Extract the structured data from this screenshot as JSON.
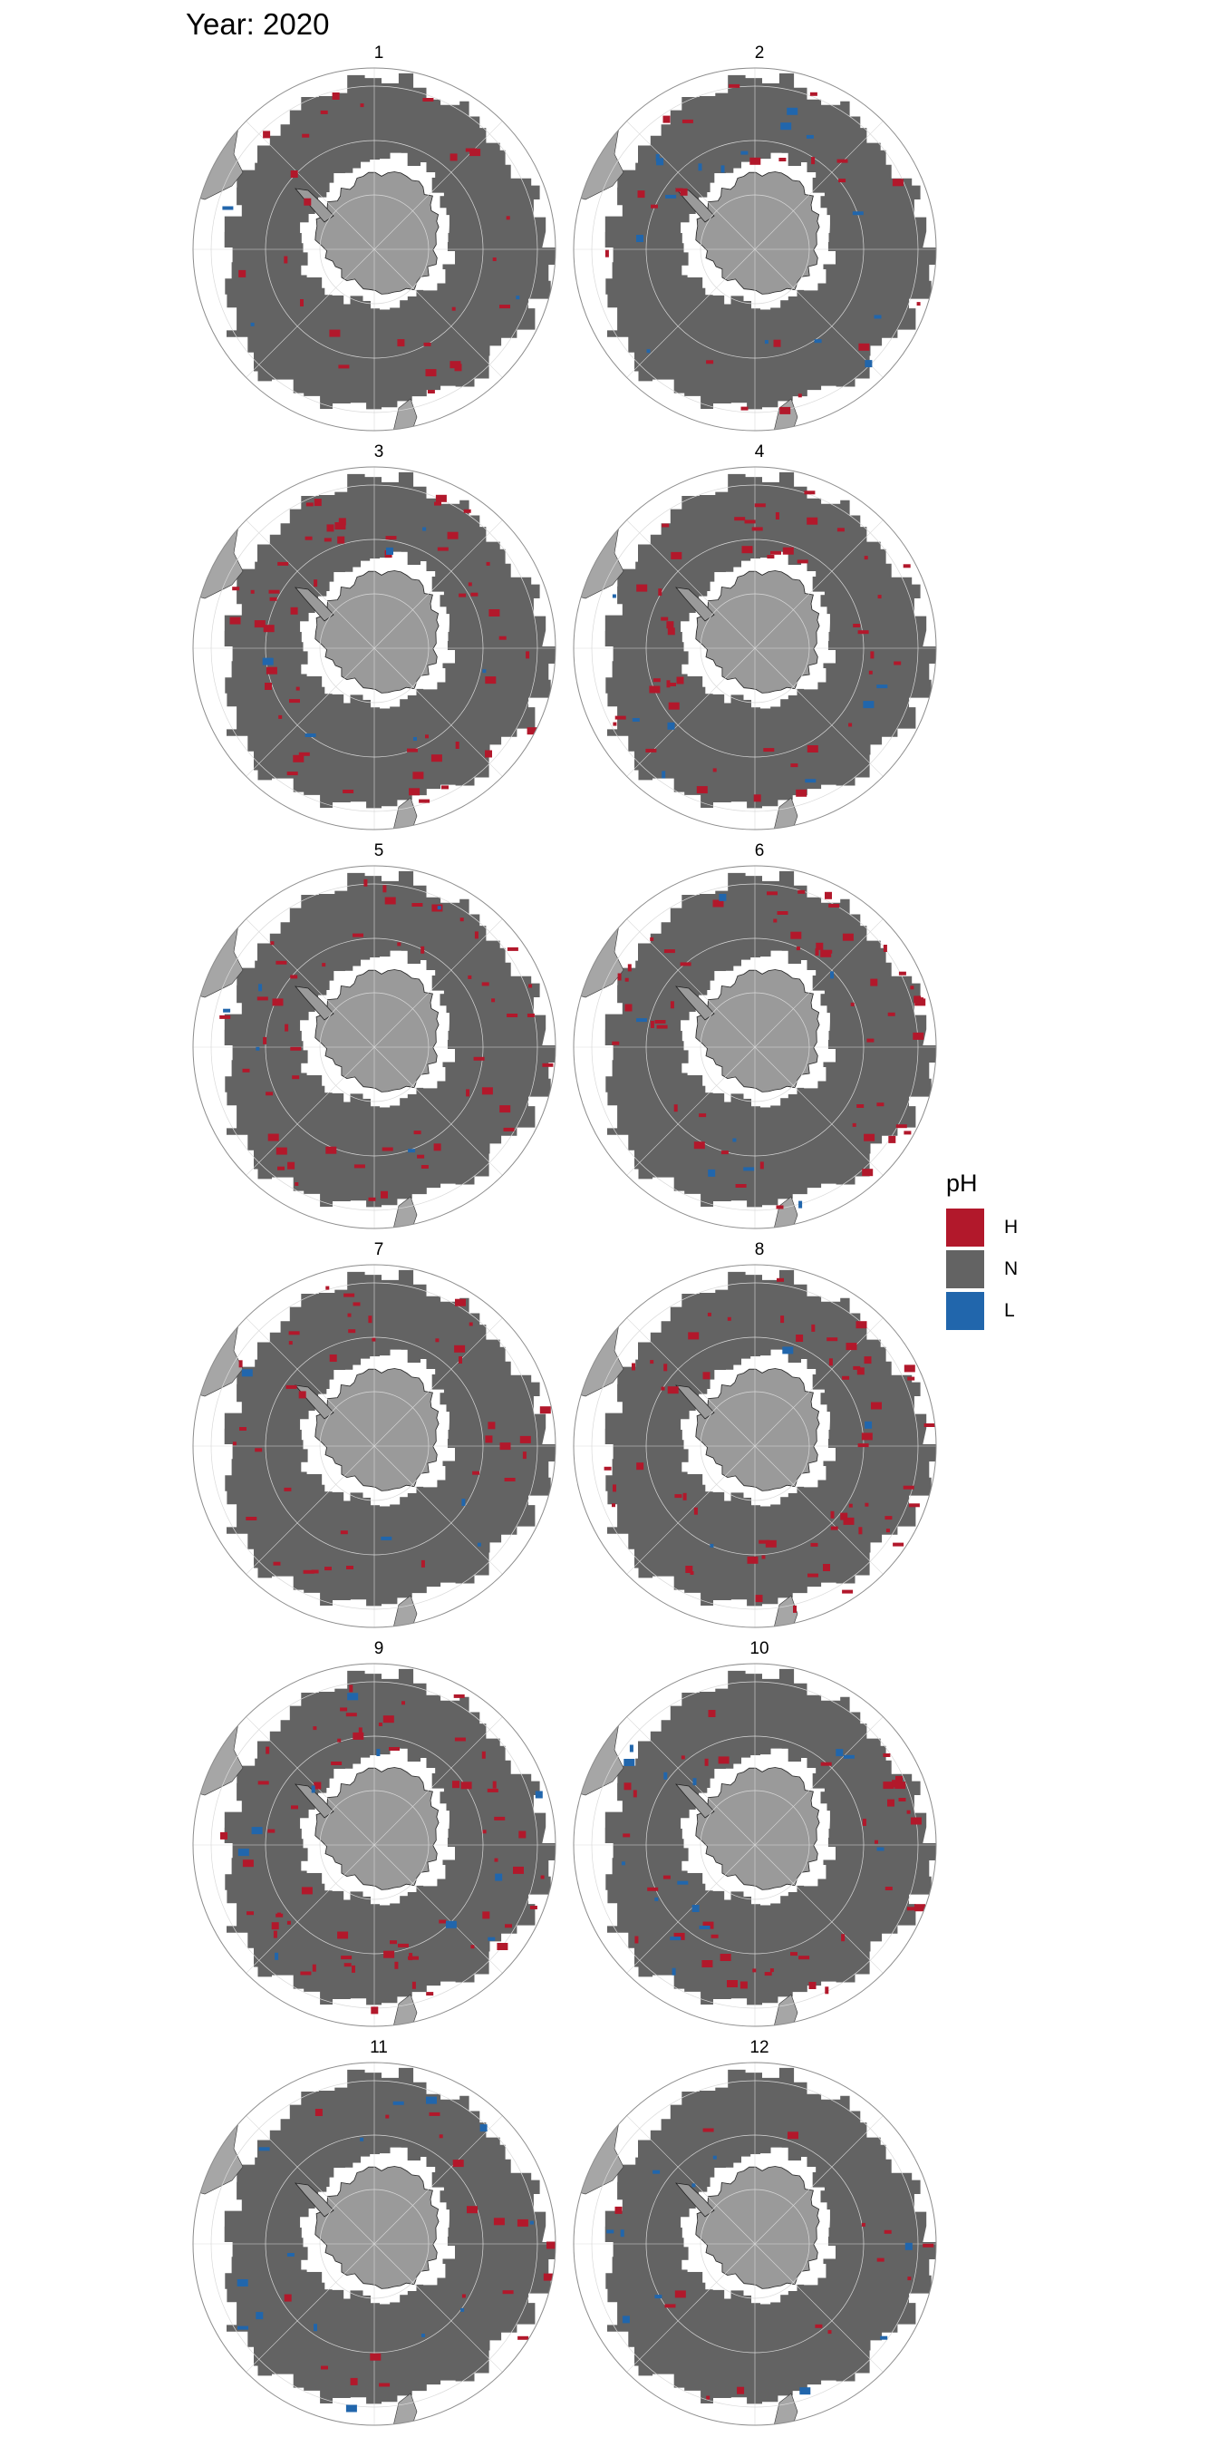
{
  "title": "Year: 2020",
  "legend": {
    "title": "pH",
    "items": [
      {
        "key": "H",
        "color": "#b2182b"
      },
      {
        "key": "N",
        "color": "#636363"
      },
      {
        "key": "L",
        "color": "#2166ac"
      }
    ]
  },
  "colors": {
    "land": "#a6a6a6",
    "antarctica": "#9a9a9a",
    "ocean_no_data": "#ffffff",
    "grid": "#d9d9d9",
    "border": "#8c8c8c"
  },
  "map": {
    "projection": "south-polar-stereographic",
    "region": "Southern Ocean"
  },
  "panels": [
    {
      "label": "1",
      "h": 26,
      "l": 3
    },
    {
      "label": "2",
      "h": 22,
      "l": 16
    },
    {
      "label": "3",
      "h": 52,
      "l": 6
    },
    {
      "label": "4",
      "h": 45,
      "l": 7
    },
    {
      "label": "5",
      "h": 50,
      "l": 5
    },
    {
      "label": "6",
      "h": 52,
      "l": 7
    },
    {
      "label": "7",
      "h": 38,
      "l": 4
    },
    {
      "label": "8",
      "h": 58,
      "l": 3
    },
    {
      "label": "9",
      "h": 60,
      "l": 10
    },
    {
      "label": "10",
      "h": 40,
      "l": 14
    },
    {
      "label": "11",
      "h": 18,
      "l": 14
    },
    {
      "label": "12",
      "h": 14,
      "l": 10
    }
  ]
}
